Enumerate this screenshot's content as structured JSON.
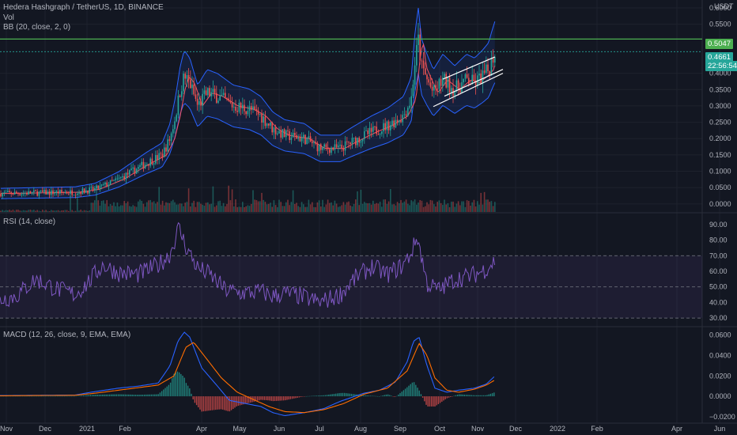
{
  "header": {
    "symbol_line": "Hedera Hashgraph / TetherUS, 1D, BINANCE",
    "vol_label": "Vol",
    "bb_label": "BB (20, close, 2, 0)",
    "currency": "USDT"
  },
  "rsi_legend": "RSI (14, close)",
  "macd_legend": "MACD (12, 26, close, 9, EMA, EMA)",
  "tags": {
    "resistance": "0.5047",
    "price": "0.4661",
    "countdown": "22:56:54"
  },
  "colors": {
    "background": "#131722",
    "up": "#26a69a",
    "down": "#ef5350",
    "bollinger": "#2962ff",
    "basis": "#f7525f",
    "resistance": "#4caf50",
    "rsi": "#7e57c2",
    "macd": "#2962ff",
    "signal": "#ff6d00"
  },
  "chart_data": [
    {
      "type": "candlestick",
      "title": "Hedera Hashgraph / TetherUS, 1D, BINANCE",
      "ylim": [
        -0.01,
        0.6
      ],
      "y_ticks": [
        "0.6000",
        "0.5500",
        "0.5047",
        "0.4661",
        "0.4000",
        "0.3500",
        "0.3000",
        "0.2500",
        "0.2000",
        "0.1500",
        "0.1000",
        "0.0500",
        "0.0000"
      ],
      "x_ticks": [
        "Nov",
        "Dec",
        "2021",
        "Feb",
        "Apr",
        "May",
        "Jun",
        "Jul",
        "Aug",
        "Sep",
        "Oct",
        "Nov",
        "Dec",
        "2022",
        "Feb",
        "Apr",
        "Jun"
      ],
      "price_path": {
        "x": [
          0,
          95,
          120,
          150,
          185,
          205,
          215,
          222,
          228,
          233,
          240,
          250,
          262,
          275,
          295,
          315,
          330,
          345,
          360,
          385,
          405,
          430,
          445,
          470,
          490,
          510,
          520,
          525,
          529,
          533,
          540,
          548,
          560,
          575,
          590,
          600,
          610,
          618,
          622,
          626
        ],
        "y": [
          0.032,
          0.036,
          0.045,
          0.075,
          0.125,
          0.15,
          0.2,
          0.27,
          0.35,
          0.39,
          0.37,
          0.3,
          0.34,
          0.33,
          0.3,
          0.29,
          0.27,
          0.23,
          0.21,
          0.2,
          0.17,
          0.17,
          0.19,
          0.22,
          0.24,
          0.27,
          0.32,
          0.44,
          0.5,
          0.42,
          0.38,
          0.34,
          0.38,
          0.35,
          0.38,
          0.37,
          0.39,
          0.41,
          0.44,
          0.466
        ]
      },
      "resistance_level": 0.5047,
      "last_price": 0.4661,
      "series": [
        {
          "name": "BB (20, close, 2, 0)"
        }
      ]
    },
    {
      "type": "line",
      "title": "RSI (14, close)",
      "ylim": [
        25,
        95
      ],
      "y_ticks": [
        90,
        80,
        70,
        60,
        50,
        40,
        30
      ],
      "bands": [
        30,
        50,
        70
      ],
      "path": {
        "x": [
          0,
          20,
          45,
          70,
          95,
          110,
          120,
          130,
          150,
          175,
          200,
          215,
          226,
          235,
          250,
          265,
          285,
          305,
          330,
          345,
          360,
          380,
          405,
          430,
          450,
          470,
          490,
          510,
          520,
          528,
          540,
          555,
          575,
          595,
          610,
          620,
          626
        ],
        "y": [
          42,
          44,
          55,
          49,
          45,
          52,
          58,
          64,
          59,
          58,
          64,
          71,
          88,
          76,
          62,
          58,
          48,
          46,
          47,
          44,
          46,
          44,
          40,
          45,
          56,
          63,
          58,
          64,
          72,
          82,
          52,
          48,
          55,
          57,
          60,
          64,
          67
        ]
      }
    },
    {
      "type": "line",
      "title": "MACD (12, 26, close, 9, EMA, EMA)",
      "ylim": [
        -0.024,
        0.066
      ],
      "y_ticks": [
        "0.0600",
        "0.0400",
        "0.0200",
        "0.0000",
        "−0.0200"
      ],
      "macd_path": {
        "x": [
          0,
          95,
          115,
          150,
          175,
          200,
          215,
          225,
          233,
          240,
          255,
          275,
          290,
          310,
          330,
          345,
          360,
          385,
          410,
          430,
          460,
          480,
          500,
          515,
          523,
          530,
          540,
          550,
          565,
          580,
          600,
          615,
          626
        ],
        "y": [
          0.0008,
          0.0012,
          0.004,
          0.008,
          0.01,
          0.013,
          0.03,
          0.054,
          0.063,
          0.058,
          0.028,
          0.01,
          -0.004,
          -0.007,
          -0.01,
          -0.016,
          -0.019,
          -0.016,
          -0.012,
          -0.005,
          0.003,
          0.006,
          0.014,
          0.034,
          0.054,
          0.058,
          0.03,
          0.008,
          0.004,
          0.006,
          0.008,
          0.012,
          0.02
        ]
      },
      "signal_path": {
        "x": [
          0,
          95,
          120,
          160,
          200,
          220,
          235,
          245,
          260,
          280,
          300,
          320,
          340,
          360,
          385,
          410,
          435,
          460,
          490,
          515,
          530,
          540,
          550,
          565,
          580,
          600,
          615,
          626
        ],
        "y": [
          0.0005,
          0.001,
          0.003,
          0.007,
          0.011,
          0.02,
          0.048,
          0.053,
          0.038,
          0.018,
          0.004,
          -0.003,
          -0.01,
          -0.015,
          -0.016,
          -0.013,
          -0.007,
          0.002,
          0.008,
          0.025,
          0.052,
          0.04,
          0.018,
          0.006,
          0.004,
          0.007,
          0.011,
          0.016
        ]
      }
    }
  ]
}
